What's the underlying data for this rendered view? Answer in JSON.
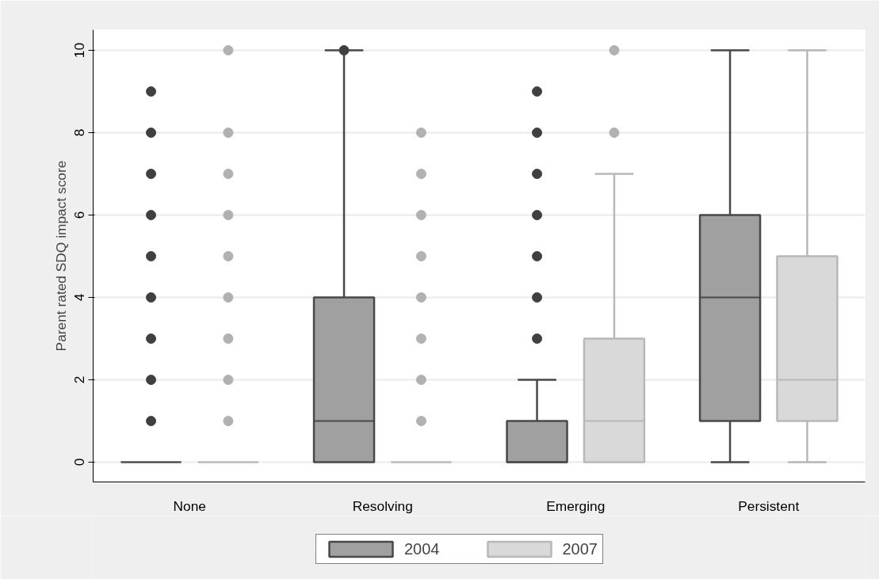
{
  "chart_data": {
    "type": "box",
    "ylabel": "Parent rated SDQ impact score",
    "categories": [
      "None",
      "Resolving",
      "Emerging",
      "Persistent"
    ],
    "ylim": [
      -0.48,
      10.5
    ],
    "yticks": [
      0,
      2,
      4,
      6,
      8,
      10
    ],
    "grid": "y",
    "legend": "bottom",
    "series": [
      {
        "name": "2004",
        "color": "#a0a0a0",
        "boxes": [
          {
            "low": 0,
            "q1": 0,
            "median": 0,
            "q3": 0,
            "high": 0,
            "outliers": [
              1,
              2,
              3,
              4,
              5,
              6,
              7,
              8,
              9
            ]
          },
          {
            "low": 0,
            "q1": 0,
            "median": 1,
            "q3": 4,
            "high": 10,
            "outliers": [
              10
            ]
          },
          {
            "low": 0,
            "q1": 0,
            "median": 0,
            "q3": 1,
            "high": 2,
            "outliers": [
              3,
              4,
              5,
              6,
              7,
              8,
              9
            ]
          },
          {
            "low": 0,
            "q1": 1,
            "median": 4,
            "q3": 6,
            "high": 10
          }
        ]
      },
      {
        "name": "2007",
        "color": "#d9d9d9",
        "boxes": [
          {
            "low": 0,
            "q1": 0,
            "median": 0,
            "q3": 0,
            "high": 0,
            "outliers": [
              1,
              2,
              3,
              4,
              5,
              6,
              7,
              8,
              10
            ]
          },
          {
            "low": 0,
            "q1": 0,
            "median": 0,
            "q3": 0,
            "high": 0,
            "outliers": [
              1,
              2,
              3,
              4,
              5,
              6,
              7,
              8
            ]
          },
          {
            "low": 0,
            "q1": 0,
            "median": 1,
            "q3": 3,
            "high": 7,
            "outliers": [
              8,
              10
            ]
          },
          {
            "low": 0,
            "q1": 1,
            "median": 2,
            "q3": 5,
            "high": 10
          }
        ]
      }
    ]
  }
}
